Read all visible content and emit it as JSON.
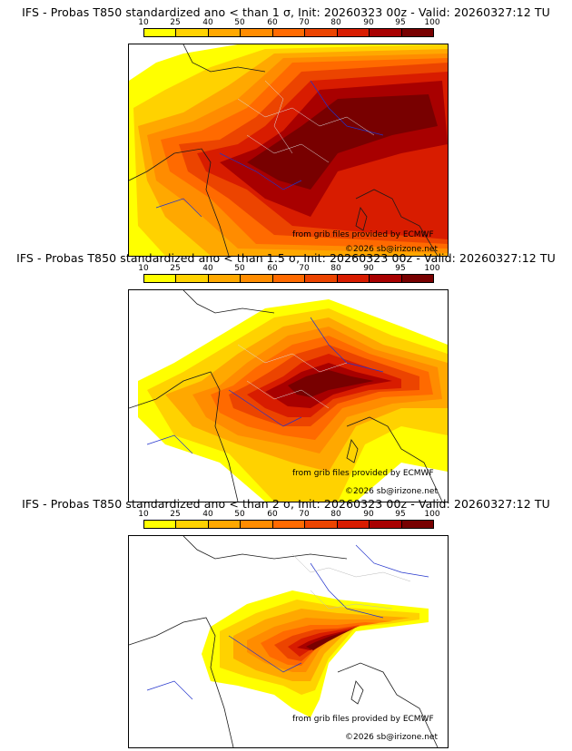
{
  "colors": [
    "#ffff00",
    "#ffd200",
    "#ffa800",
    "#ff8c00",
    "#ff6a00",
    "#ec4400",
    "#d81c00",
    "#a80000",
    "#780000",
    "#4a0000"
  ],
  "legend_ticks": [
    "10",
    "25",
    "40",
    "50",
    "60",
    "70",
    "80",
    "90",
    "95",
    "100"
  ],
  "panels": [
    {
      "title": "IFS - Probas T850  standardized ano < than 1 σ, Init: 20260323 00z - Valid: 20260327:12 TU",
      "credit_source": "from grib files provided by ECMWF",
      "credit_copyright": "©2026 sb@irizone.net",
      "coverage": "high"
    },
    {
      "title": "IFS - Probas T850  standardized ano < than 1.5 σ, Init: 20260323 00z - Valid: 20260327:12 TU",
      "credit_source": "from grib files provided by ECMWF",
      "credit_copyright": "©2026 sb@irizone.net",
      "coverage": "medium"
    },
    {
      "title": "IFS - Probas T850  standardized ano < than 2 σ, Init: 20260323 00z - Valid: 20260327:12 TU",
      "credit_source": "from grib files provided by ECMWF",
      "credit_copyright": "©2026 sb@irizone.net",
      "coverage": "low"
    }
  ]
}
